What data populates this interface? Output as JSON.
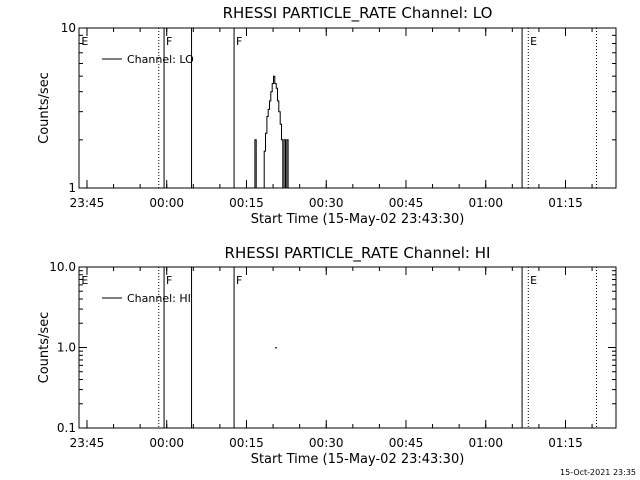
{
  "chart_data": [
    {
      "type": "line",
      "title": "RHESSI PARTICLE_RATE Channel: LO",
      "xlabel": "Start Time (15-May-02 23:43:30)",
      "ylabel": "Counts/sec",
      "y_scale": "log",
      "ylim": [
        1,
        10
      ],
      "y_ticks": [
        {
          "value": 1,
          "label": "1"
        },
        {
          "value": 10,
          "label": "10"
        }
      ],
      "xlim": [
        "23:43:30",
        "01:24:30"
      ],
      "x_ticks": [
        "23:45",
        "00:00",
        "00:15",
        "00:30",
        "00:45",
        "01:00",
        "01:15"
      ],
      "legend": {
        "position": "top-left",
        "label": "Channel: LO"
      },
      "grid": false,
      "solid_markers": [
        "23:59:30",
        "00:04:40",
        "00:12:40",
        "01:06:50"
      ],
      "dotted_markers": [
        "23:58:30",
        "01:08:00",
        "01:20:50"
      ],
      "event_labels": [
        {
          "label": "E",
          "time": "23:43:45"
        },
        {
          "label": "F",
          "time": "23:59:40"
        },
        {
          "label": "F",
          "time": "00:12:50"
        },
        {
          "label": "E",
          "time": "01:08:10"
        }
      ],
      "series": [
        {
          "x": [
            "00:16:20",
            "00:16:35",
            "00:16:50",
            "00:17:05",
            "00:17:20",
            "00:17:35",
            "00:17:50",
            "00:18:05",
            "00:18:20",
            "00:18:35",
            "00:18:50",
            "00:19:05",
            "00:19:20",
            "00:19:35",
            "00:19:50",
            "00:20:05",
            "00:20:20",
            "00:20:35",
            "00:20:50",
            "00:21:05",
            "00:21:20",
            "00:21:35",
            "00:21:50",
            "00:22:05",
            "00:22:20",
            "00:22:35",
            "00:22:50",
            "00:23:05",
            "00:23:20",
            "00:23:35",
            "00:23:50",
            "00:24:05",
            "00:24:20",
            "00:24:35",
            "00:24:50",
            "00:25:05"
          ],
          "y": [
            1,
            2,
            1,
            1,
            1,
            1,
            1,
            1,
            1.7,
            2.2,
            2.8,
            3.1,
            3.5,
            4.0,
            4.5,
            5.0,
            4.5,
            4.2,
            3.5,
            3.0,
            2.5,
            2.0,
            1,
            2.0,
            1,
            2.0,
            1,
            1,
            1,
            1,
            1,
            1,
            1,
            1,
            1,
            1
          ]
        }
      ]
    },
    {
      "type": "line",
      "title": "RHESSI PARTICLE_RATE Channel: HI",
      "xlabel": "Start Time (15-May-02 23:43:30)",
      "ylabel": "Counts/sec",
      "y_scale": "log",
      "ylim": [
        0.1,
        10
      ],
      "y_ticks": [
        {
          "value": 0.1,
          "label": "0.1"
        },
        {
          "value": 1,
          "label": "1.0"
        },
        {
          "value": 10,
          "label": "10.0"
        }
      ],
      "xlim": [
        "23:43:30",
        "01:24:30"
      ],
      "x_ticks": [
        "23:45",
        "00:00",
        "00:15",
        "00:30",
        "00:45",
        "01:00",
        "01:15"
      ],
      "legend": {
        "position": "top-left",
        "label": "Channel: HI"
      },
      "grid": false,
      "solid_markers": [
        "23:59:30",
        "00:04:40",
        "00:12:40",
        "01:06:50"
      ],
      "dotted_markers": [
        "23:58:30",
        "01:08:00",
        "01:20:50"
      ],
      "event_labels": [
        {
          "label": "E",
          "time": "23:43:45"
        },
        {
          "label": "F",
          "time": "23:59:40"
        },
        {
          "label": "F",
          "time": "00:12:50"
        },
        {
          "label": "E",
          "time": "01:08:10"
        }
      ],
      "series": [
        {
          "x": [
            "00:20:30"
          ],
          "y": [
            1.0
          ]
        }
      ]
    }
  ],
  "footer": {
    "stamp": "15-Oct-2021 23:35"
  }
}
